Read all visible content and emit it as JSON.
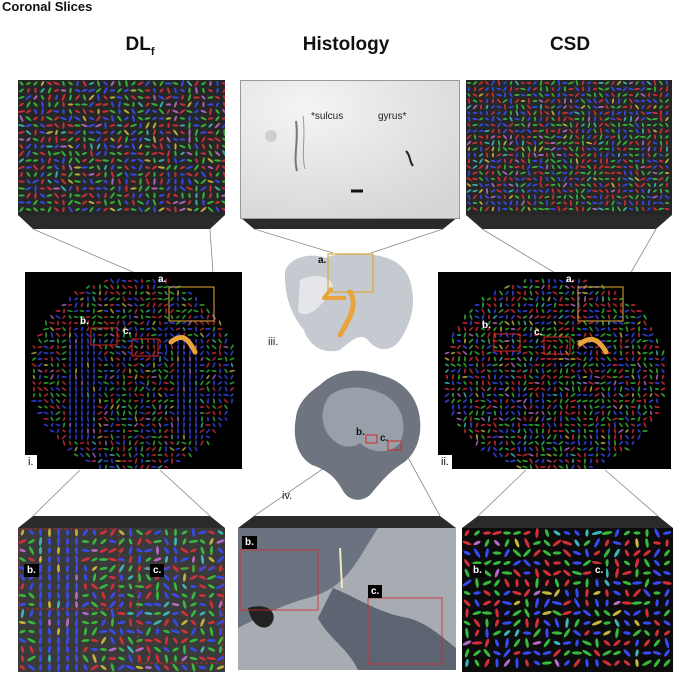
{
  "page_title": "Coronal Slices",
  "columns": {
    "left": "DLf",
    "left_main": "DL",
    "left_sub": "f",
    "center": "Histology",
    "right": "CSD"
  },
  "panel_labels": {
    "i": "i.",
    "ii": "ii.",
    "iii": "iii.",
    "iv": "iv."
  },
  "region_labels": {
    "a": "a.",
    "b": "b.",
    "c": "c."
  },
  "histology_top": {
    "sulcus": "*sulcus",
    "gyrus": "gyrus*"
  },
  "colors": {
    "box_a": "#e3a73a",
    "box_bc": "#d42a2a",
    "arrow": "#e9a33a",
    "fiber_blue": "#3a4dff",
    "fiber_green": "#39c43e",
    "fiber_red": "#e0303a"
  }
}
